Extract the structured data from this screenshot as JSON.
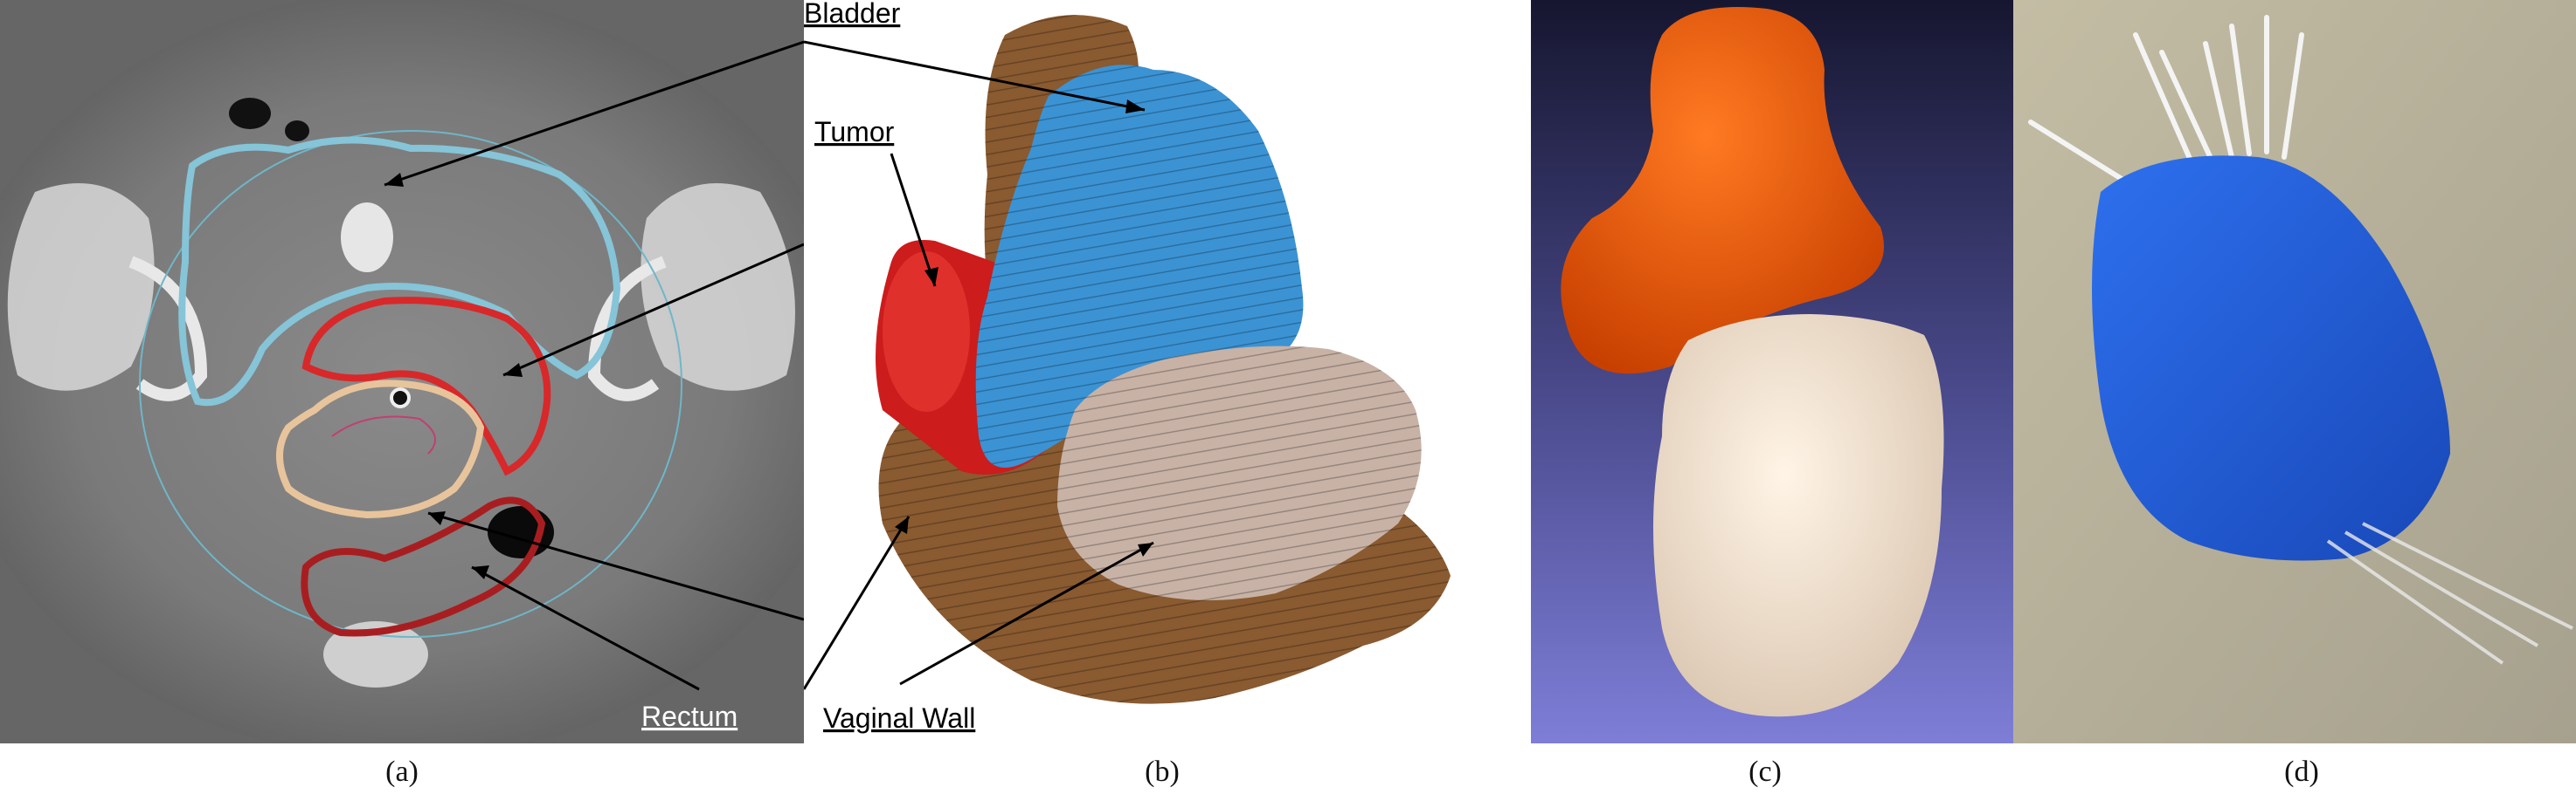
{
  "labels": {
    "bladder": "Bladder",
    "tumor": "Tumor",
    "rectum": "Rectum",
    "vaginal_wall": "Vaginal Wall"
  },
  "captions": {
    "a": "(a)",
    "b": "(b)",
    "c": "(c)",
    "d": "(d)"
  },
  "colors": {
    "bladder_contour": "#86c4d8",
    "tumor_contour": "#d8282a",
    "rectum_contour": "#a81e20",
    "vaginal_wall_contour": "#e8c49c",
    "bladder_3d": "#3b93d4",
    "tumor_3d": "#cc1c1c",
    "vaginal_wall_3d": "#c8b2a6",
    "rectum_3d": "#8a5a30",
    "applicator_top": "#f05a10",
    "applicator_bottom": "#f2e0cc",
    "printed_model": "#1e5cd4"
  }
}
